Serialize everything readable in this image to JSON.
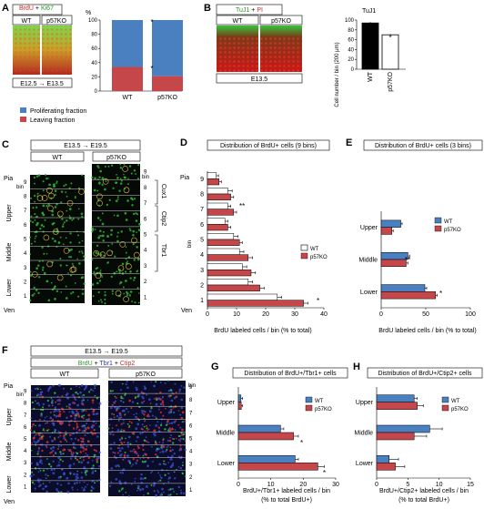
{
  "panels": {
    "A": {
      "letter": "A",
      "stain_1": "BrdU",
      "stain_plus": " + ",
      "stain_2": "Ki67",
      "wt": "WT",
      "ko": "p57KO",
      "time": "E12.5 → E13.5",
      "ylabel": "%",
      "legend_prolif": "Proliferating fraction",
      "legend_leaving": "Leaving fraction",
      "star": "*"
    },
    "B": {
      "letter": "B",
      "stain_1": "TuJ1",
      "stain_plus": " + ",
      "stain_2": "PI",
      "wt": "WT",
      "ko": "p57KO",
      "time": "E13.5",
      "chart_title": "TuJ1",
      "ylabel": "Cell number / bin (200 μm)",
      "star": "*"
    },
    "C": {
      "letter": "C",
      "time": "E13.5 → E19.5",
      "wt": "WT",
      "ko": "p57KO",
      "pia": "Pia",
      "ven": "Ven",
      "bin": "bin",
      "upper": "Upper",
      "middle": "Middle",
      "lower": "Lower",
      "cux1": "Cux1",
      "ctip2": "Ctip2",
      "tbr1": "Tbr1"
    },
    "D": {
      "letter": "D",
      "title": "Distribution of BrdU+ cells (9 bins)",
      "xlabel": "BrdU labeled cells / bin (% to total)",
      "ylabel": "bin",
      "pia": "Pia",
      "ven": "Ven",
      "wt": "WT",
      "ko": "p57KO",
      "stars": [
        "*",
        "**"
      ]
    },
    "E": {
      "letter": "E",
      "title": "Distribution of BrdU+ cells (3 bins)",
      "xlabel": "BrdU labeled cells / bin (% to total)",
      "wt": "WT",
      "ko": "p57KO",
      "stars": [
        "**",
        "*"
      ]
    },
    "F": {
      "letter": "F",
      "time": "E13.5 → E19.5",
      "stain_1": "BrdU",
      "stain_plus1": " + ",
      "stain_2": "Tbr1",
      "stain_plus2": " + ",
      "stain_3": "Ctip2",
      "wt": "WT",
      "ko": "p57KO",
      "pia": "Pia",
      "ven": "Ven",
      "bin": "bin",
      "upper": "Upper",
      "middle": "Middle",
      "lower": "Lower"
    },
    "G": {
      "letter": "G",
      "title": "Distribution of BrdU+/Tbr1+ cells",
      "xlabel_1": "BrdU+/Tbr1+ labeled cells / bin",
      "xlabel_2": "(% to total BrdU+)",
      "wt": "WT",
      "ko": "p57KO",
      "stars": [
        "*",
        "*"
      ]
    },
    "H": {
      "letter": "H",
      "title": "Distribution of BrdU+/Ctip2+ cells",
      "xlabel_1": "BrdU+/Ctip2+ labeled cells / bin",
      "xlabel_2": "(% to total BrdU+)",
      "wt": "WT",
      "ko": "p57KO"
    }
  },
  "colors": {
    "wt_blue": "#4a7fc0",
    "ko_red": "#c6474a",
    "brdu": "#2fc23a",
    "ki67": "#2fc23a",
    "pi": "#e02020",
    "tbr1": "#3a4fd0",
    "ctip2": "#e03030"
  },
  "chart_data": [
    {
      "panel": "A",
      "type": "bar",
      "stacked": true,
      "categories": [
        "WT",
        "p57KO"
      ],
      "series": [
        {
          "name": "Proliferating fraction",
          "values": [
            66,
            79
          ]
        },
        {
          "name": "Leaving fraction",
          "values": [
            34,
            21
          ]
        }
      ],
      "ylabel": "%",
      "ylim": [
        0,
        100
      ],
      "yticks": [
        0,
        20,
        40,
        60,
        80,
        100
      ]
    },
    {
      "panel": "B",
      "type": "bar",
      "title": "TuJ1",
      "categories": [
        "WT",
        "p57KO"
      ],
      "values": [
        94,
        70
      ],
      "errors": [
        2,
        1.5
      ],
      "ylabel": "Cell number / bin (200 μm)",
      "ylim": [
        0,
        100
      ],
      "yticks": [
        0,
        20,
        40,
        60,
        80,
        100
      ]
    },
    {
      "panel": "D",
      "type": "bar",
      "orientation": "horizontal",
      "categories": [
        "1",
        "2",
        "3",
        "4",
        "5",
        "6",
        "7",
        "8",
        "9"
      ],
      "series": [
        {
          "name": "WT",
          "values": [
            24,
            14,
            12,
            11,
            9,
            6,
            7,
            7,
            3
          ],
          "errors": [
            1.5,
            1.5,
            1.5,
            1.5,
            1.5,
            1,
            1,
            1.5,
            0.8
          ]
        },
        {
          "name": "p57KO",
          "values": [
            33,
            18,
            15,
            14,
            11,
            7,
            9,
            8,
            4
          ],
          "errors": [
            1.5,
            1.5,
            1.5,
            1.5,
            1,
            1,
            1,
            1,
            0.8
          ]
        }
      ],
      "xlabel": "BrdU labeled cells / bin (% to total)",
      "ylabel": "bin",
      "xlim": [
        0,
        40
      ],
      "xticks": [
        0,
        10,
        20,
        30,
        40
      ],
      "legend": "right"
    },
    {
      "panel": "E",
      "type": "bar",
      "orientation": "horizontal",
      "categories": [
        "Lower",
        "Middle",
        "Upper"
      ],
      "series": [
        {
          "name": "WT",
          "values": [
            49,
            30,
            22
          ],
          "errors": [
            2,
            2,
            1.5
          ]
        },
        {
          "name": "p57KO",
          "values": [
            61,
            28,
            12
          ],
          "errors": [
            2,
            2,
            1.5
          ]
        }
      ],
      "xlabel": "BrdU labeled cells / bin (% to total)",
      "xlim": [
        0,
        100
      ],
      "xticks": [
        0,
        50,
        100
      ],
      "legend": "top-right"
    },
    {
      "panel": "G",
      "type": "bar",
      "orientation": "horizontal",
      "categories": [
        "Lower",
        "Middle",
        "Upper"
      ],
      "series": [
        {
          "name": "WT",
          "values": [
            17.5,
            13,
            0.8
          ],
          "errors": [
            1,
            1,
            0.5
          ]
        },
        {
          "name": "p57KO",
          "values": [
            24.5,
            17,
            0.9
          ],
          "errors": [
            2,
            1.5,
            0.4
          ]
        }
      ],
      "xlabel": "BrdU+/Tbr1+ labeled cells / bin (% to total BrdU+)",
      "xlim": [
        0,
        30
      ],
      "xticks": [
        0,
        10,
        20,
        30
      ],
      "legend": "top-right"
    },
    {
      "panel": "H",
      "type": "bar",
      "orientation": "horizontal",
      "categories": [
        "Lower",
        "Middle",
        "Upper"
      ],
      "series": [
        {
          "name": "WT",
          "values": [
            2,
            8.5,
            6
          ],
          "errors": [
            1.5,
            2,
            0.5
          ]
        },
        {
          "name": "p57KO",
          "values": [
            3,
            6,
            6.5
          ],
          "errors": [
            1.5,
            2,
            1
          ]
        }
      ],
      "xlabel": "BrdU+/Ctip2+ labeled cells / bin (% to total BrdU+)",
      "xlim": [
        0,
        15
      ],
      "xticks": [
        0,
        5,
        10,
        15
      ],
      "legend": "top-right"
    }
  ]
}
